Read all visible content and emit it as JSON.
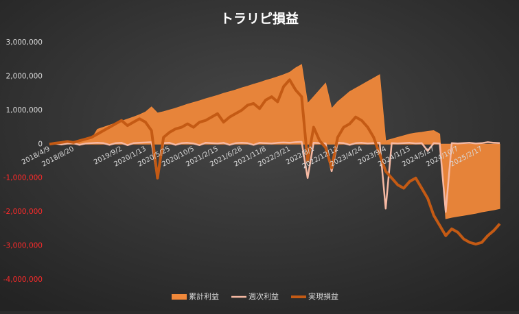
{
  "chart_data": {
    "type": "combo",
    "title": "トラリピ損益",
    "categories": [
      "2018/4/9",
      null,
      null,
      null,
      "2018/8/20",
      null,
      null,
      null,
      null,
      null,
      null,
      null,
      "2019/9/2",
      null,
      null,
      null,
      "2020/1/13",
      null,
      null,
      null,
      "2020/5/25",
      null,
      null,
      null,
      "2020/10/5",
      null,
      null,
      null,
      "2021/2/15",
      null,
      null,
      null,
      "2021/6/28",
      null,
      null,
      null,
      "2021/11/8",
      null,
      null,
      null,
      "2022/3/21",
      null,
      null,
      null,
      "2022/8/1",
      null,
      null,
      null,
      "2022/12/12",
      null,
      null,
      null,
      "2023/4/24",
      null,
      null,
      null,
      "2023/9/4",
      null,
      null,
      null,
      "2024/1/15",
      null,
      null,
      null,
      "2024/5/27",
      null,
      null,
      null,
      "2024/10/7",
      null,
      null,
      null,
      "2025/2/17",
      null,
      null,
      null
    ],
    "series": [
      {
        "name": "累計利益",
        "type": "area",
        "color": "#f0883a",
        "values": [
          0,
          20000,
          40000,
          60000,
          80000,
          100000,
          120000,
          150000,
          440000,
          500000,
          560000,
          620000,
          680000,
          740000,
          800000,
          870000,
          950000,
          1100000,
          920000,
          960000,
          1010000,
          1060000,
          1120000,
          1180000,
          1230000,
          1280000,
          1340000,
          1390000,
          1440000,
          1500000,
          1550000,
          1600000,
          1660000,
          1710000,
          1770000,
          1820000,
          1880000,
          1930000,
          1990000,
          2050000,
          2120000,
          2250000,
          2350000,
          1200000,
          1400000,
          1600000,
          1800000,
          1050000,
          1250000,
          1400000,
          1550000,
          1650000,
          1750000,
          1850000,
          1950000,
          2050000,
          100000,
          150000,
          200000,
          250000,
          300000,
          330000,
          350000,
          380000,
          400000,
          300000,
          -2200000,
          -2160000,
          -2130000,
          -2100000,
          -2070000,
          -2040000,
          -2000000,
          -1970000,
          -1940000,
          -1900000
        ]
      },
      {
        "name": "週次利益",
        "type": "line",
        "color": "#f6b9a3",
        "width": 2.5,
        "values": [
          10000,
          20000,
          -10000,
          20000,
          30000,
          -20000,
          20000,
          30000,
          40000,
          30000,
          -20000,
          30000,
          40000,
          -30000,
          30000,
          40000,
          50000,
          60000,
          -1000000,
          30000,
          40000,
          -20000,
          30000,
          40000,
          20000,
          -30000,
          40000,
          30000,
          20000,
          40000,
          -20000,
          30000,
          40000,
          30000,
          -20000,
          40000,
          30000,
          20000,
          40000,
          50000,
          40000,
          60000,
          70000,
          -1000000,
          40000,
          30000,
          20000,
          -800000,
          40000,
          30000,
          -20000,
          30000,
          40000,
          20000,
          30000,
          40000,
          -1900000,
          30000,
          20000,
          30000,
          40000,
          20000,
          30000,
          -200000,
          30000,
          20000,
          -2000000,
          30000,
          20000,
          30000,
          40000,
          20000,
          30000,
          60000,
          40000,
          30000
        ]
      },
      {
        "name": "実現損益",
        "type": "line",
        "color": "#c45a14",
        "width": 4,
        "values": [
          0,
          30000,
          50000,
          80000,
          50000,
          100000,
          150000,
          200000,
          300000,
          400000,
          500000,
          600000,
          700000,
          550000,
          650000,
          750000,
          650000,
          400000,
          -1000000,
          200000,
          350000,
          450000,
          500000,
          600000,
          500000,
          650000,
          700000,
          800000,
          900000,
          650000,
          800000,
          900000,
          1000000,
          1150000,
          1200000,
          1050000,
          1300000,
          1400000,
          1250000,
          1700000,
          1900000,
          1600000,
          1400000,
          -500000,
          500000,
          100000,
          -100000,
          -700000,
          200000,
          500000,
          600000,
          800000,
          700000,
          500000,
          200000,
          -300000,
          -800000,
          -1000000,
          -1200000,
          -1300000,
          -1100000,
          -1000000,
          -1300000,
          -1600000,
          -2100000,
          -2400000,
          -2700000,
          -2500000,
          -2600000,
          -2800000,
          -2900000,
          -2950000,
          -2900000,
          -2700000,
          -2550000,
          -2350000
        ]
      }
    ],
    "ylim": [
      -4000000,
      3000000
    ],
    "yticks": [
      {
        "value": -4000000,
        "label": "-4,000,000"
      },
      {
        "value": -3000000,
        "label": "-3,000,000"
      },
      {
        "value": -2000000,
        "label": "-2,000,000"
      },
      {
        "value": -1000000,
        "label": "-1,000,000"
      },
      0,
      {
        "value": 1000000,
        "label": "1,000,000"
      },
      {
        "value": 2000000,
        "label": "2,000,000"
      },
      {
        "value": 3000000,
        "label": "3,000,000"
      }
    ],
    "negative_tick_color": "#ff2a2a",
    "tick_color": "#d9d9d9",
    "legend": "bottom"
  }
}
